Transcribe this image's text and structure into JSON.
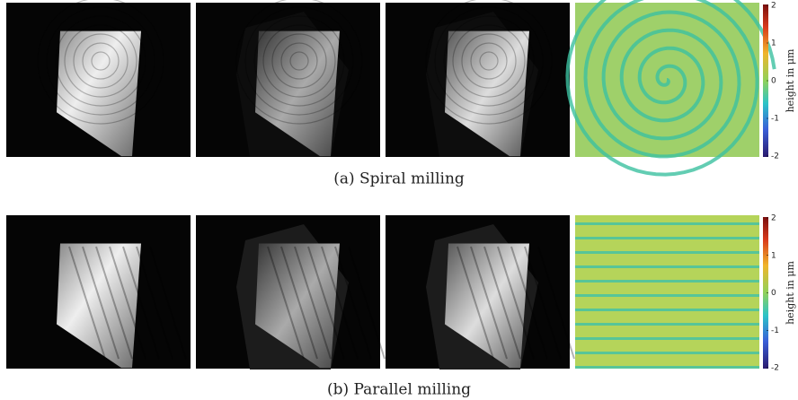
{
  "figures": [
    {
      "caption": "(a) Spiral milling",
      "colorbar": {
        "label": "height in μm",
        "ticks": [
          2,
          1,
          0,
          -1,
          -2
        ]
      }
    },
    {
      "caption": "(b) Parallel milling",
      "colorbar": {
        "label": "height in μm",
        "ticks": [
          2,
          1,
          0,
          -1,
          -2
        ]
      }
    }
  ]
}
